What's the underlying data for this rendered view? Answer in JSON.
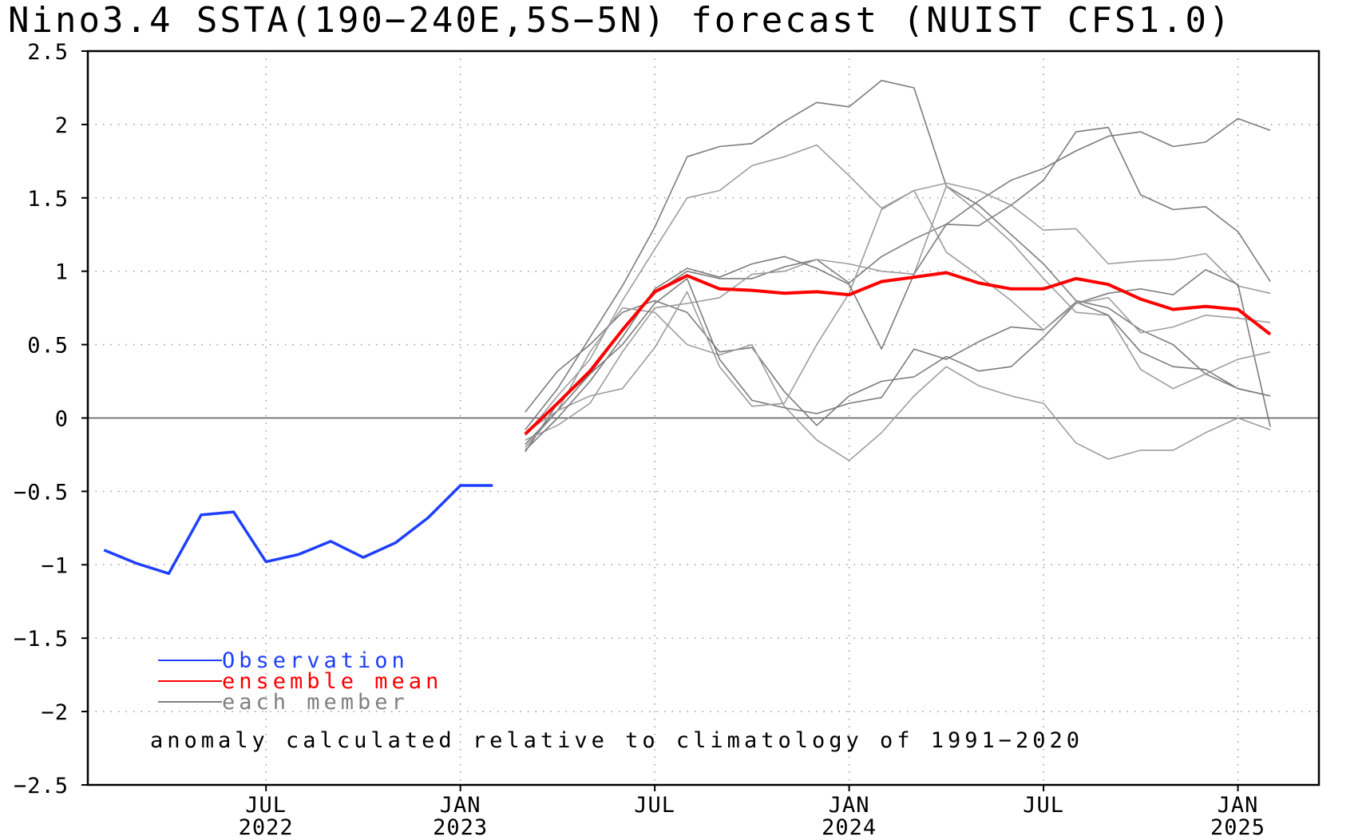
{
  "chart_data": {
    "type": "line",
    "title": "Nino3.4 SSTA(190−240E,5S−5N) forecast (NUIST CFS1.0)",
    "xlabel": "",
    "ylabel": "",
    "xlim": [
      "2022-02",
      "2025-03"
    ],
    "ylim": [
      -2.5,
      2.5
    ],
    "yticks": [
      -2.5,
      -2,
      -1.5,
      -1,
      -0.5,
      0,
      0.5,
      1,
      1.5,
      2,
      2.5
    ],
    "ytick_labels": [
      "−2.5",
      "−2",
      "−1.5",
      "−1",
      "−0.5",
      "0",
      "0.5",
      "1",
      "1.5",
      "2",
      "2.5"
    ],
    "xticks": [
      {
        "month": "2022-07",
        "label": "JUL",
        "year": "2022"
      },
      {
        "month": "2023-01",
        "label": "JAN",
        "year": "2023"
      },
      {
        "month": "2023-07",
        "label": "JUL",
        "year": ""
      },
      {
        "month": "2024-01",
        "label": "JAN",
        "year": "2024"
      },
      {
        "month": "2024-07",
        "label": "JUL",
        "year": ""
      },
      {
        "month": "2025-01",
        "label": "JAN",
        "year": "2025"
      }
    ],
    "grid": true,
    "legend": [
      {
        "label": "Observation",
        "color": "#1f3fff"
      },
      {
        "label": "ensemble mean",
        "color": "#ff0000"
      },
      {
        "label": "each member",
        "color": "#808080"
      }
    ],
    "legend_position": "lower-left",
    "annotation": "anomaly calculated relative to climatology of 1991−2020",
    "observation": {
      "name": "Observation",
      "color": "#1f3fff",
      "x": [
        "2022-02",
        "2022-03",
        "2022-04",
        "2022-05",
        "2022-06",
        "2022-07",
        "2022-08",
        "2022-09",
        "2022-10",
        "2022-11",
        "2022-12",
        "2023-01",
        "2023-02"
      ],
      "values": [
        -0.9,
        -0.99,
        -1.06,
        -0.66,
        -0.64,
        -0.98,
        -0.93,
        -0.84,
        -0.95,
        -0.85,
        -0.68,
        -0.46,
        -0.46
      ]
    },
    "ensemble_mean": {
      "name": "ensemble mean",
      "color": "#ff0000",
      "x": [
        "2023-03",
        "2023-04",
        "2023-05",
        "2023-06",
        "2023-07",
        "2023-08",
        "2023-09",
        "2023-10",
        "2023-11",
        "2023-12",
        "2024-01",
        "2024-02",
        "2024-03",
        "2024-04",
        "2024-05",
        "2024-06",
        "2024-07",
        "2024-08",
        "2024-09",
        "2024-10",
        "2024-11",
        "2024-12",
        "2025-01",
        "2025-02"
      ],
      "values": [
        -0.11,
        0.1,
        0.32,
        0.6,
        0.86,
        0.97,
        0.88,
        0.87,
        0.85,
        0.86,
        0.84,
        0.93,
        0.96,
        0.99,
        0.92,
        0.88,
        0.88,
        0.95,
        0.91,
        0.81,
        0.74,
        0.76,
        0.74,
        0.57
      ]
    },
    "members": {
      "name": "each member",
      "color": "#808080",
      "x": [
        "2023-03",
        "2023-04",
        "2023-05",
        "2023-06",
        "2023-07",
        "2023-08",
        "2023-09",
        "2023-10",
        "2023-11",
        "2023-12",
        "2024-01",
        "2024-02",
        "2024-03",
        "2024-04",
        "2024-05",
        "2024-06",
        "2024-07",
        "2024-08",
        "2024-09",
        "2024-10",
        "2024-11",
        "2024-12",
        "2025-01",
        "2025-02"
      ],
      "series": [
        [
          -0.08,
          0.2,
          0.55,
          0.9,
          1.3,
          1.78,
          1.85,
          1.87,
          2.02,
          2.15,
          2.12,
          2.3,
          2.25,
          1.58,
          1.45,
          1.25,
          1.05,
          0.8,
          0.75,
          0.6,
          0.5,
          0.3,
          0.2,
          0.15
        ],
        [
          -0.12,
          0.15,
          0.4,
          0.8,
          1.15,
          1.5,
          1.55,
          1.72,
          1.78,
          1.86,
          1.65,
          1.43,
          1.55,
          1.6,
          1.55,
          1.45,
          1.28,
          1.29,
          1.05,
          1.07,
          1.08,
          1.12,
          0.9,
          0.85
        ],
        [
          0.04,
          0.32,
          0.5,
          0.72,
          0.8,
          0.72,
          0.45,
          0.48,
          0.18,
          -0.05,
          0.15,
          0.25,
          0.28,
          0.42,
          0.32,
          0.35,
          0.55,
          0.78,
          0.85,
          0.88,
          0.84,
          1.01,
          0.91,
          -0.06
        ],
        [
          -0.2,
          0.05,
          0.45,
          0.75,
          0.72,
          0.5,
          0.43,
          0.5,
          0.08,
          -0.15,
          -0.29,
          -0.1,
          0.15,
          0.35,
          0.22,
          0.15,
          0.1,
          -0.17,
          -0.28,
          -0.22,
          -0.22,
          -0.1,
          0.0,
          -0.08
        ],
        [
          -0.23,
          0.1,
          0.3,
          0.6,
          0.85,
          1.0,
          0.95,
          0.95,
          1.03,
          1.08,
          0.92,
          1.1,
          1.22,
          1.32,
          1.31,
          1.45,
          1.62,
          1.95,
          1.98,
          1.52,
          1.42,
          1.44,
          1.27,
          0.93
        ],
        [
          -0.15,
          -0.05,
          0.1,
          0.45,
          0.75,
          0.78,
          0.82,
          0.98,
          1.0,
          1.08,
          1.05,
          1.0,
          0.98,
          1.58,
          1.4,
          1.2,
          0.95,
          0.72,
          0.7,
          0.33,
          0.2,
          0.3,
          0.4,
          0.45
        ],
        [
          -0.18,
          0.05,
          0.3,
          0.5,
          0.78,
          0.95,
          0.4,
          0.12,
          0.07,
          0.03,
          0.1,
          0.14,
          0.47,
          0.4,
          0.52,
          0.62,
          0.6,
          0.79,
          0.7,
          0.45,
          0.35,
          0.33,
          0.2,
          0.15
        ],
        [
          -0.1,
          0.05,
          0.15,
          0.2,
          0.48,
          0.86,
          0.35,
          0.08,
          0.1,
          0.5,
          0.85,
          1.42,
          1.55,
          1.13,
          0.97,
          0.8,
          0.6,
          0.78,
          0.82,
          0.58,
          0.62,
          0.7,
          0.68,
          0.65
        ],
        [
          -0.22,
          0.0,
          0.25,
          0.55,
          0.88,
          1.02,
          0.96,
          1.05,
          1.1,
          1.02,
          0.91,
          0.47,
          0.98,
          1.32,
          1.48,
          1.62,
          1.7,
          1.82,
          1.92,
          1.95,
          1.85,
          1.88,
          2.04,
          1.96
        ]
      ]
    }
  }
}
